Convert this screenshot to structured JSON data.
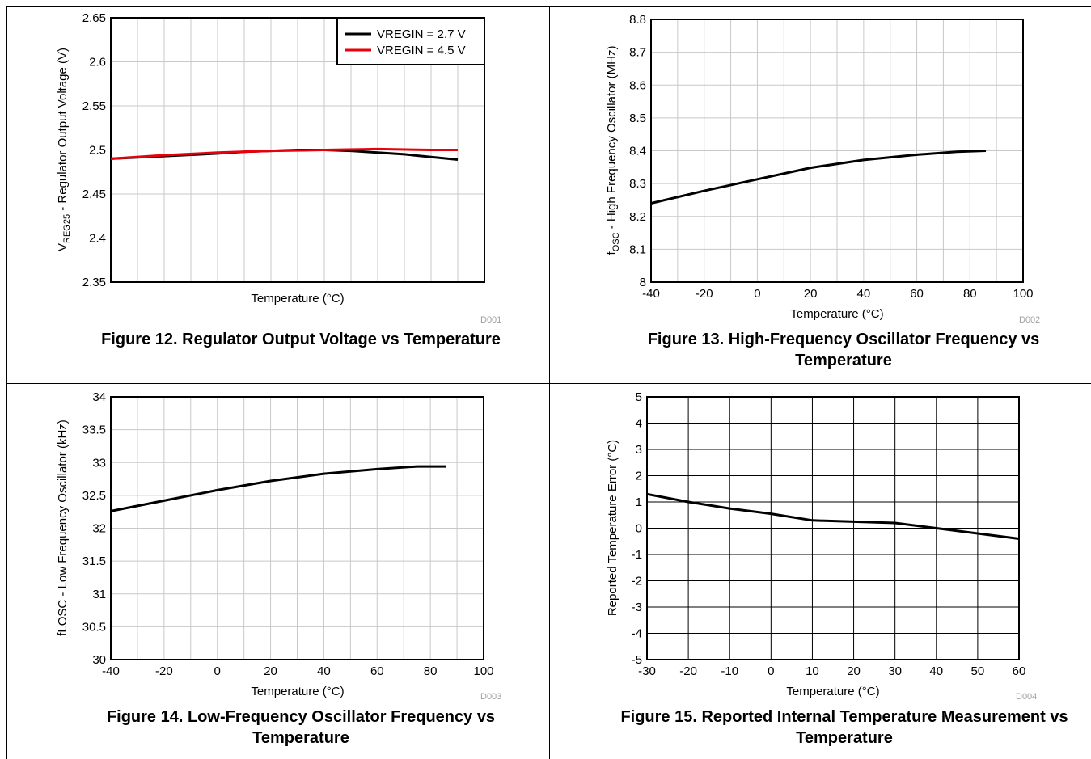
{
  "figures": [
    {
      "caption": "Figure 12. Regulator Output Voltage vs Temperature",
      "code": "D001",
      "chart_data": {
        "type": "line",
        "xlabel": "Temperature (°C)",
        "ylabel_main": "V",
        "ylabel_sub": "REG25",
        "ylabel_rest": " - Regulator Output Voltage (V)",
        "xlim": [
          -40,
          100
        ],
        "ylim": [
          2.35,
          2.65
        ],
        "yticks": [
          "2.35",
          "2.4",
          "2.45",
          "2.5",
          "2.55",
          "2.6",
          "2.65"
        ],
        "xticks": [],
        "legend_position": "top-right",
        "series": [
          {
            "name": "VREGIN = 2.7 V",
            "color": "#000000",
            "x": [
              -40,
              -20,
              0,
              10,
              20,
              30,
              40,
              50,
              60,
              70,
              80,
              90
            ],
            "y": [
              2.49,
              2.493,
              2.496,
              2.498,
              2.499,
              2.5,
              2.5,
              2.499,
              2.497,
              2.495,
              2.492,
              2.489
            ]
          },
          {
            "name": "VREGIN = 4.5 V",
            "color": "#e8000b",
            "x": [
              -40,
              -20,
              0,
              20,
              40,
              60,
              80,
              90
            ],
            "y": [
              2.49,
              2.494,
              2.497,
              2.499,
              2.5,
              2.501,
              2.5,
              2.5
            ]
          }
        ]
      }
    },
    {
      "caption": "Figure 13. High-Frequency Oscillator Frequency vs Temperature",
      "code": "D002",
      "chart_data": {
        "type": "line",
        "xlabel": "Temperature (°C)",
        "ylabel_main": "f",
        "ylabel_sub": "OSC",
        "ylabel_rest": " - High Frequency Oscillator (MHz)",
        "xlim": [
          -40,
          100
        ],
        "ylim": [
          8.0,
          8.8
        ],
        "yticks": [
          "8",
          "8.1",
          "8.2",
          "8.3",
          "8.4",
          "8.5",
          "8.6",
          "8.7",
          "8.8"
        ],
        "xticks": [
          "-40",
          "-20",
          "0",
          "20",
          "40",
          "60",
          "80",
          "100"
        ],
        "series": [
          {
            "color": "#000000",
            "x": [
              -40,
              -20,
              0,
              20,
              40,
              60,
              75,
              86
            ],
            "y": [
              8.24,
              8.278,
              8.313,
              8.348,
              8.372,
              8.388,
              8.397,
              8.4
            ]
          }
        ]
      }
    },
    {
      "caption": "Figure 14. Low-Frequency Oscillator Frequency vs Temperature",
      "code": "D003",
      "chart_data": {
        "type": "line",
        "xlabel": "Temperature (°C)",
        "ylabel_main": "fLOSC - Low Frequency Oscillator (kHz)",
        "ylabel_sub": "",
        "ylabel_rest": "",
        "xlim": [
          -40,
          100
        ],
        "ylim": [
          30,
          34
        ],
        "yticks": [
          "30",
          "30.5",
          "31",
          "31.5",
          "32",
          "32.5",
          "33",
          "33.5",
          "34"
        ],
        "xticks": [
          "-40",
          "-20",
          "0",
          "20",
          "40",
          "60",
          "80",
          "100"
        ],
        "series": [
          {
            "color": "#000000",
            "x": [
              -40,
              -20,
              0,
              20,
              40,
              60,
              75,
              86
            ],
            "y": [
              32.26,
              32.42,
              32.58,
              32.72,
              32.83,
              32.9,
              32.94,
              32.94
            ]
          }
        ]
      }
    },
    {
      "caption": "Figure 15. Reported Internal Temperature Measurement vs Temperature",
      "code": "D004",
      "chart_data": {
        "type": "line",
        "xlabel": "Temperature (°C)",
        "ylabel_main": "Reported Temperature Error (°C)",
        "ylabel_sub": "",
        "ylabel_rest": "",
        "xlim": [
          -30,
          60
        ],
        "ylim": [
          -5,
          5
        ],
        "yticks": [
          "-5",
          "-4",
          "-3",
          "-2",
          "-1",
          "0",
          "1",
          "2",
          "3",
          "4",
          "5"
        ],
        "xticks": [
          "-30",
          "-20",
          "-10",
          "0",
          "10",
          "20",
          "30",
          "40",
          "50",
          "60"
        ],
        "series": [
          {
            "color": "#000000",
            "x": [
              -30,
              -20,
              -10,
              0,
              10,
              20,
              30,
              40,
              50,
              60
            ],
            "y": [
              1.3,
              1.0,
              0.75,
              0.55,
              0.3,
              0.25,
              0.2,
              0.0,
              -0.2,
              -0.4
            ]
          }
        ]
      }
    }
  ]
}
